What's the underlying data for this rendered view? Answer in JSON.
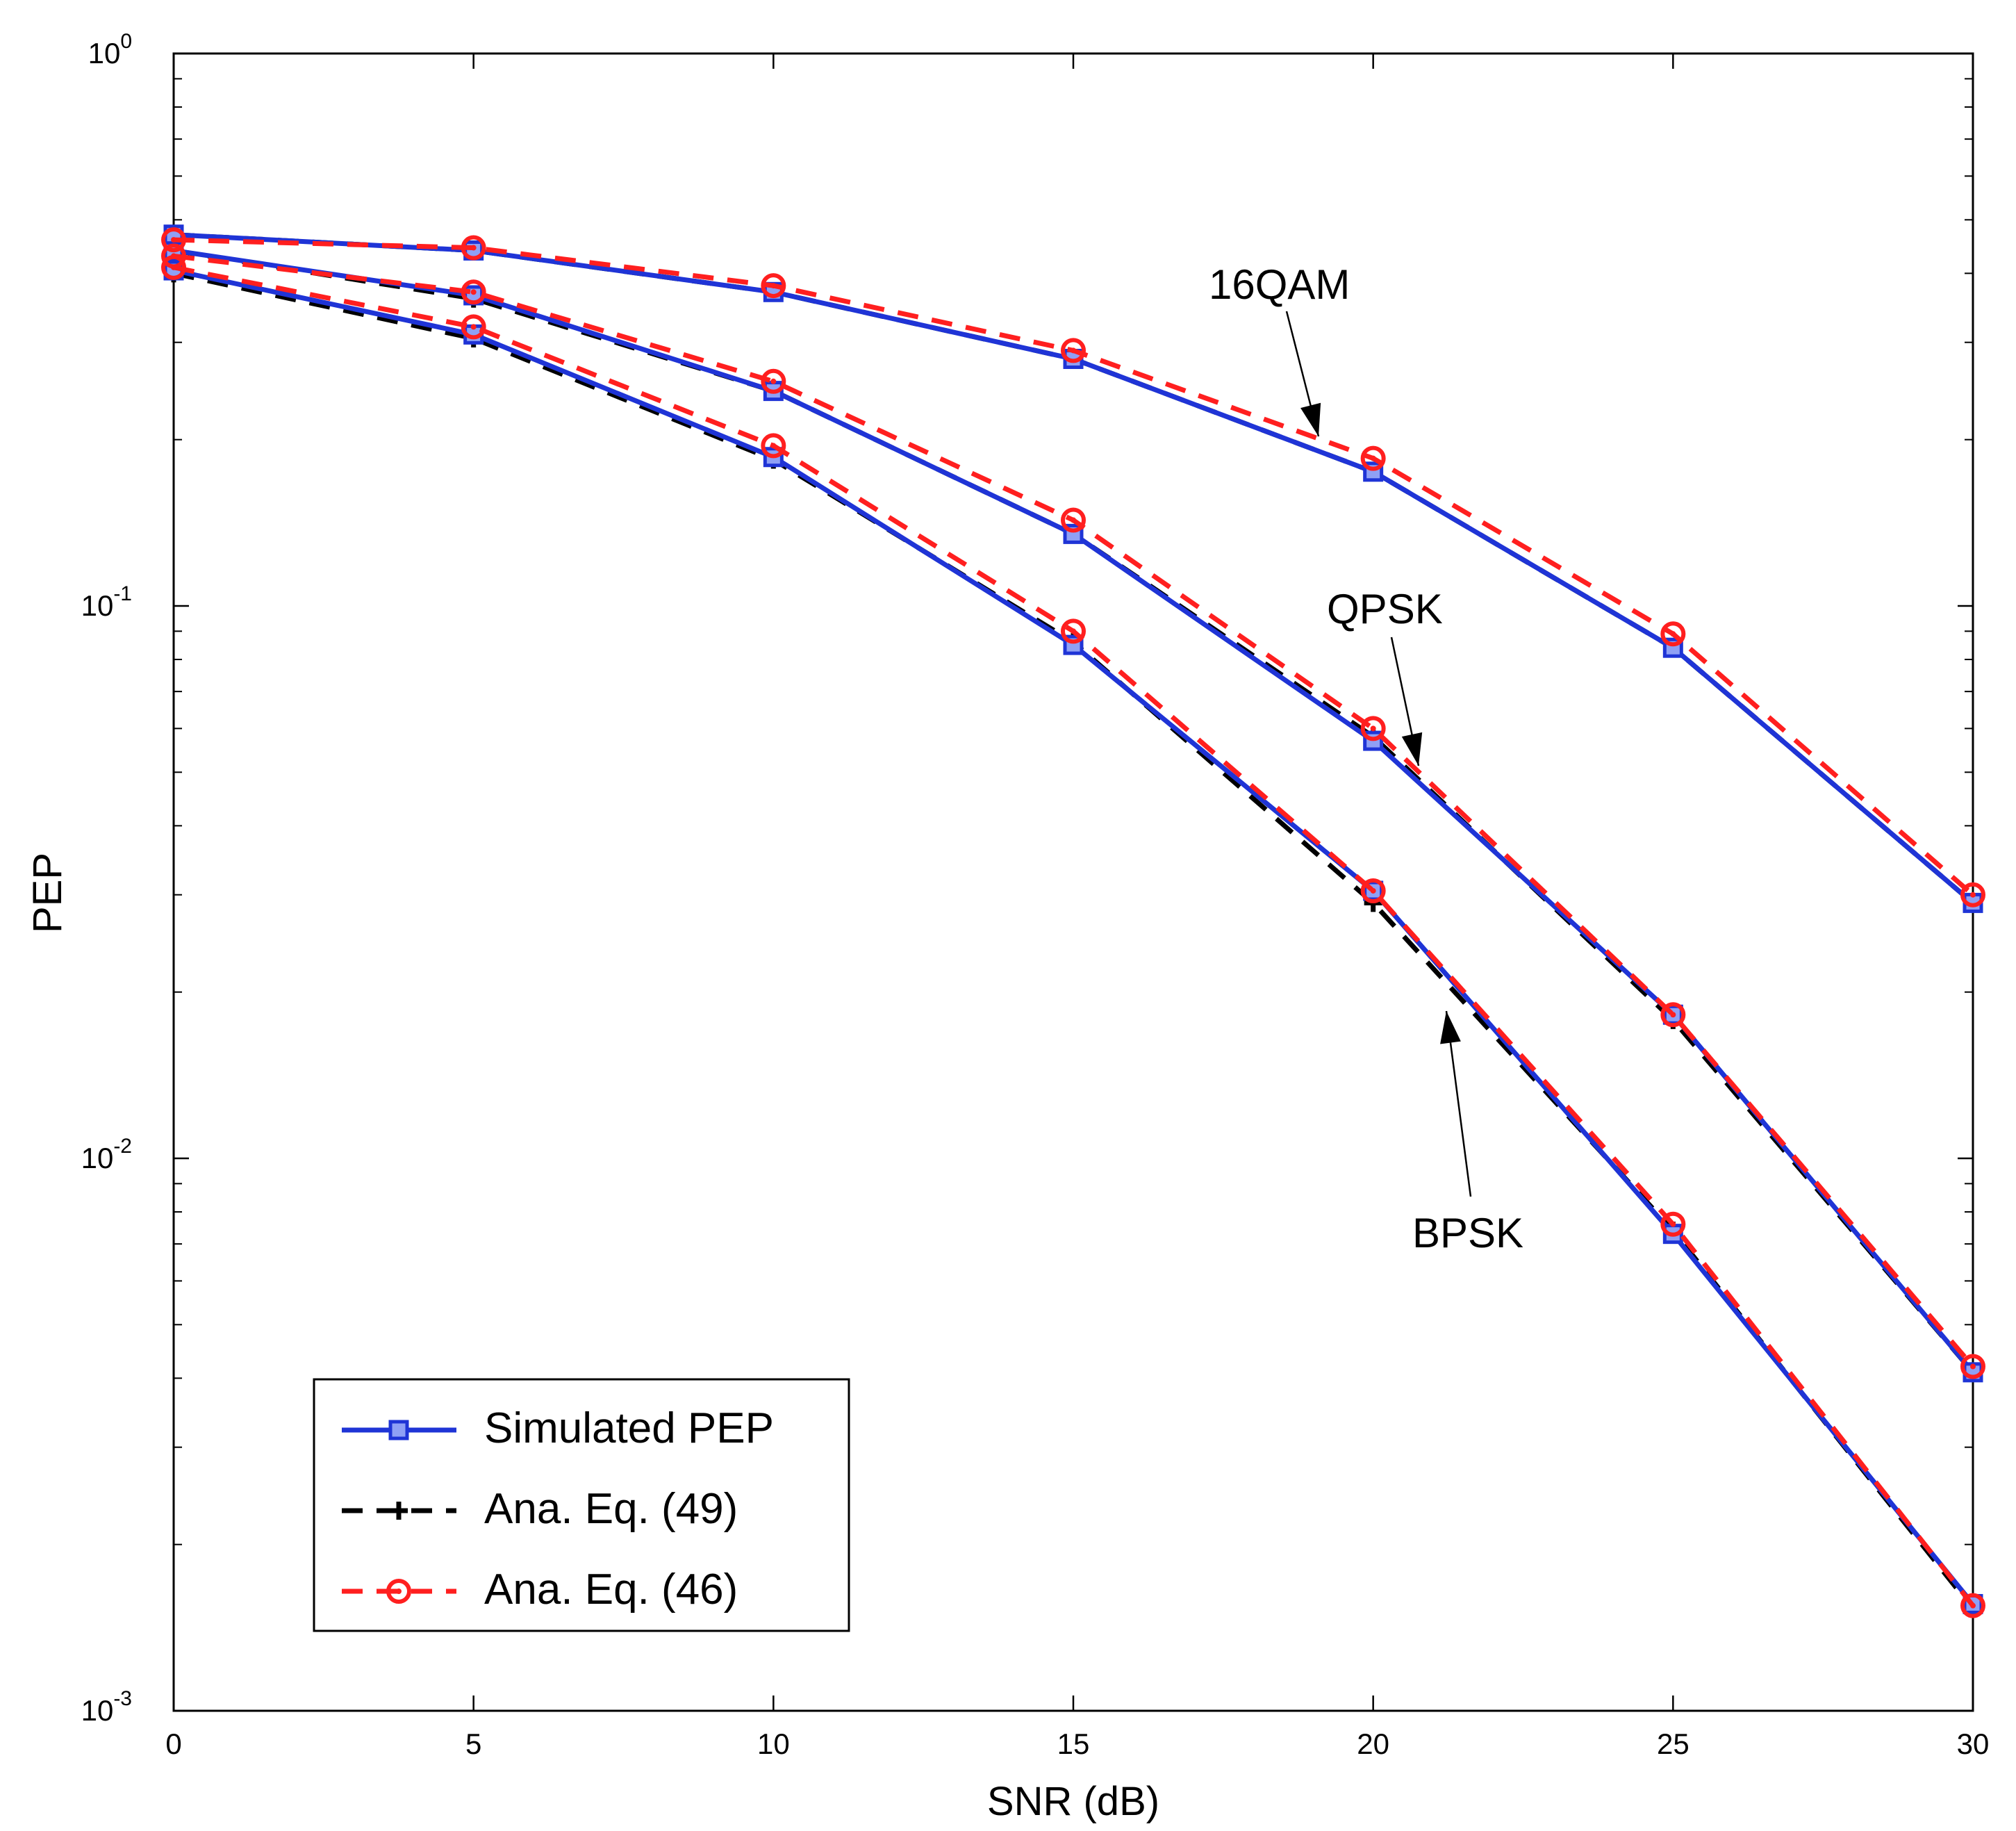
{
  "chart_data": {
    "type": "line",
    "title": "",
    "xlabel": "SNR (dB)",
    "ylabel": "PEP",
    "xscale": "linear",
    "yscale": "log",
    "xlim": [
      0,
      30
    ],
    "ylim": [
      0.001,
      1
    ],
    "x_ticks": [
      0,
      5,
      10,
      15,
      20,
      25,
      30
    ],
    "y_ticks": [
      {
        "value": 1,
        "base": "10",
        "exp": "0"
      },
      {
        "value": 0.1,
        "base": "10",
        "exp": "-1"
      },
      {
        "value": 0.01,
        "base": "10",
        "exp": "-2"
      },
      {
        "value": 0.001,
        "base": "10",
        "exp": "-3"
      }
    ],
    "grid": false,
    "legend_position": "bottom-left",
    "x": [
      0,
      5,
      10,
      15,
      20,
      25,
      30
    ],
    "series": [
      {
        "name": "Simulated PEP",
        "group": "BPSK",
        "style": "simulated",
        "values": [
          0.405,
          0.31,
          0.186,
          0.085,
          0.0305,
          0.0073,
          0.00156
        ]
      },
      {
        "name": "Ana. Eq. (49)",
        "group": "BPSK",
        "style": "ana49",
        "values": [
          0.4,
          0.305,
          0.184,
          0.086,
          0.029,
          0.0074,
          0.00153
        ]
      },
      {
        "name": "Ana. Eq. (46)",
        "group": "BPSK",
        "style": "ana46",
        "values": [
          0.41,
          0.32,
          0.195,
          0.09,
          0.0305,
          0.0076,
          0.00155
        ]
      },
      {
        "name": "Simulated PEP",
        "group": "QPSK",
        "style": "simulated",
        "values": [
          0.44,
          0.365,
          0.245,
          0.135,
          0.057,
          0.0182,
          0.0041
        ]
      },
      {
        "name": "Ana. Eq. (49)",
        "group": "QPSK",
        "style": "ana49",
        "values": [
          0.44,
          0.36,
          0.245,
          0.135,
          0.058,
          0.0178,
          0.0041
        ]
      },
      {
        "name": "Ana. Eq. (46)",
        "group": "QPSK",
        "style": "ana46",
        "values": [
          0.43,
          0.37,
          0.255,
          0.143,
          0.06,
          0.0182,
          0.0042
        ]
      },
      {
        "name": "Simulated PEP",
        "group": "16QAM",
        "style": "simulated",
        "values": [
          0.47,
          0.44,
          0.37,
          0.28,
          0.175,
          0.084,
          0.029
        ]
      },
      {
        "name": "Ana. Eq. (49)",
        "group": "16QAM",
        "style": "ana49",
        "values": [
          0.47,
          0.44,
          0.37,
          0.28,
          0.175,
          0.084,
          0.029
        ]
      },
      {
        "name": "Ana. Eq. (46)",
        "group": "16QAM",
        "style": "ana46",
        "values": [
          0.46,
          0.445,
          0.38,
          0.29,
          0.185,
          0.089,
          0.03
        ]
      }
    ],
    "legend": [
      "Simulated PEP",
      "Ana. Eq. (49)",
      "Ana. Eq. (46)"
    ],
    "annotations": [
      {
        "text": "16QAM",
        "x_data": 18.9,
        "y_data": 0.21
      },
      {
        "text": "QPSK",
        "x_data": 20.8,
        "y_data": 0.054
      },
      {
        "text": "BPSK",
        "x_data": 21.1,
        "y_data": 0.0205
      }
    ],
    "colors": {
      "simulated": "#1f34d6",
      "ana49": "#000000",
      "ana46": "#ff1f1f"
    }
  }
}
